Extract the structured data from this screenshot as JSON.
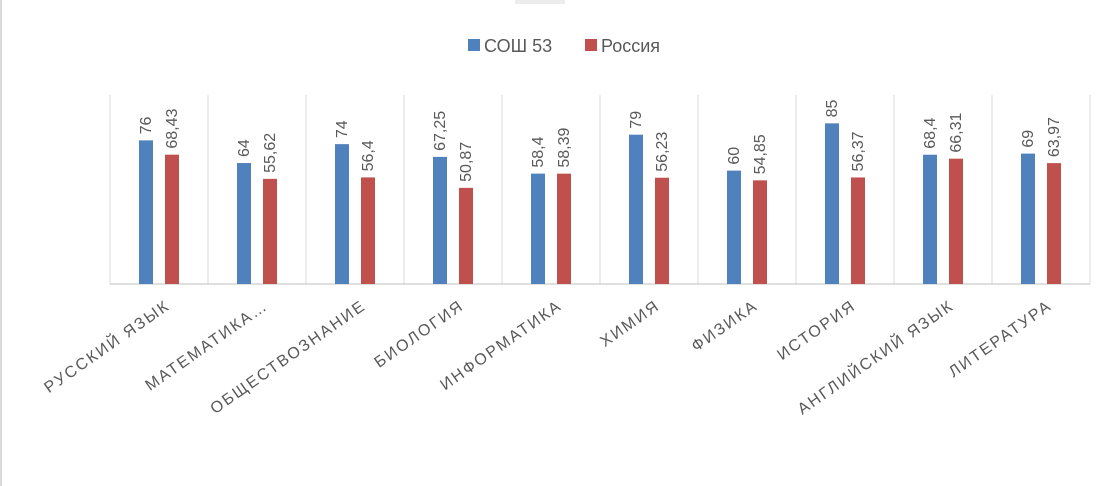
{
  "chart_data": {
    "type": "bar",
    "categories": [
      "РУССКИЙ ЯЗЫК",
      "МАТЕМАТИКА…",
      "ОБЩЕСТВОЗНАНИЕ",
      "БИОЛОГИЯ",
      "ИНФОРМАТИКА",
      "ХИМИЯ",
      "ФИЗИКА",
      "ИСТОРИЯ",
      "АНГЛИЙСКИЙ ЯЗЫК",
      "ЛИТЕРАТУРА"
    ],
    "series": [
      {
        "name": "СОШ 53",
        "color": "#4f81bd",
        "values": [
          76,
          64,
          74,
          67.25,
          58.4,
          79,
          60,
          85,
          68.4,
          69
        ],
        "labels": [
          "76",
          "64",
          "74",
          "67,25",
          "58,4",
          "79",
          "60",
          "85",
          "68,4",
          "69"
        ]
      },
      {
        "name": "Россия",
        "color": "#c0504d",
        "values": [
          68.43,
          55.62,
          56.4,
          50.87,
          58.39,
          56.23,
          54.85,
          56.37,
          66.31,
          63.97
        ],
        "labels": [
          "68,43",
          "55,62",
          "56,4",
          "50,87",
          "58,39",
          "56,23",
          "54,85",
          "56,37",
          "66,31",
          "63,97"
        ]
      }
    ],
    "ylim": [
      0,
      100
    ],
    "grid": "vertical category separators",
    "legend_position": "top-center"
  }
}
